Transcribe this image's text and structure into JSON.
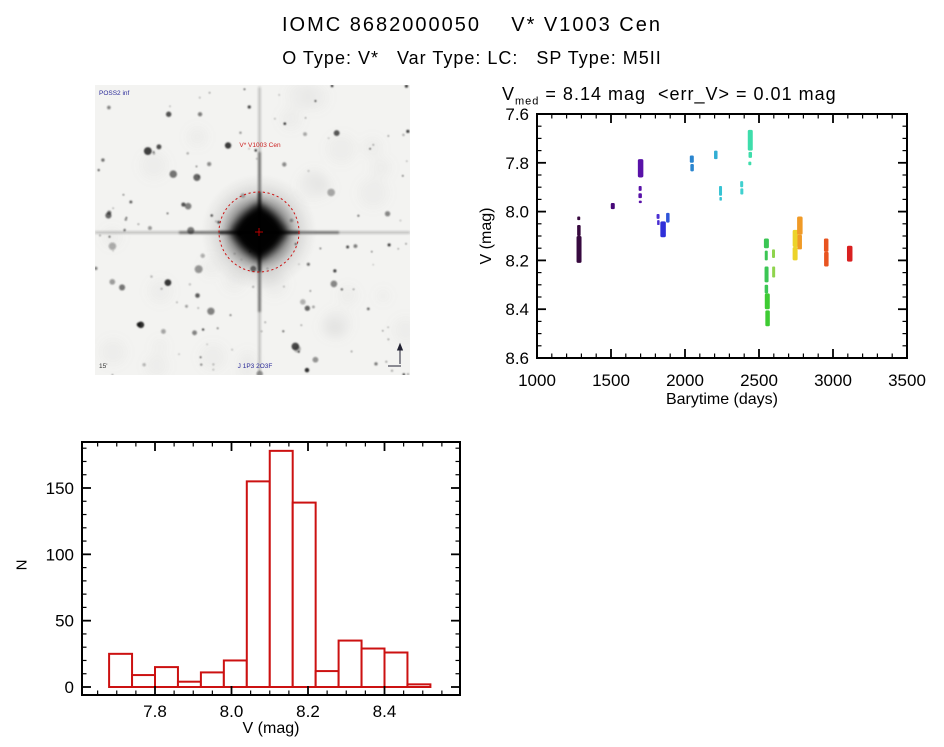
{
  "header": {
    "title": "IOMC 8682000050    V* V1003 Cen",
    "subtitle": "O Type: V*   Var Type: LC:   SP Type: M5II"
  },
  "finding_chart": {
    "survey_label": "POSS2 inf",
    "target_label": "V* V1003 Cen",
    "bottom_label": "J 1P3 2O3F",
    "fov_label": "15'",
    "circle_color": "#cc0000",
    "annotation_color": "#2a2a99"
  },
  "light_curve_title": {
    "v": "V",
    "sub": "med",
    "rest": " = 8.14 mag  <err_V> = 0.01 mag"
  },
  "chart_data": [
    {
      "id": "light_curve",
      "type": "scatter",
      "title": "V_med = 8.14 mag <err_V> = 0.01 mag",
      "xlabel": "Barytime (days)",
      "ylabel": "V (mag)",
      "xlim": [
        1000,
        3500
      ],
      "ylim": [
        7.6,
        8.6
      ],
      "y_inverted": true,
      "grid": false,
      "xticks": [
        1000,
        1500,
        2000,
        2500,
        3000,
        3500
      ],
      "yticks": [
        7.6,
        7.8,
        8.0,
        8.2,
        8.4,
        8.6
      ],
      "x_minor_step": 100,
      "y_minor_step": 0.05,
      "segments": [
        [
          1282,
          8.02,
          8.035,
          3,
          "#37093f"
        ],
        [
          1283,
          8.055,
          8.1,
          3.5,
          "#37093f"
        ],
        [
          1284,
          8.1,
          8.21,
          5,
          "#37093f"
        ],
        [
          1512,
          7.965,
          7.99,
          4,
          "#470879"
        ],
        [
          1700,
          7.785,
          7.86,
          5.5,
          "#5912a8"
        ],
        [
          1697,
          7.895,
          7.915,
          3,
          "#5912a8"
        ],
        [
          1697,
          7.925,
          7.945,
          3.5,
          "#5912a8"
        ],
        [
          1698,
          7.955,
          7.965,
          3,
          "#5912a8"
        ],
        [
          1818,
          8.01,
          8.03,
          3,
          "#4b2fd2"
        ],
        [
          1820,
          8.035,
          8.055,
          2.5,
          "#4b2fd2"
        ],
        [
          1852,
          8.04,
          8.105,
          5.5,
          "#2f2fd9"
        ],
        [
          1884,
          8.005,
          8.045,
          3.5,
          "#2f55d9"
        ],
        [
          2046,
          7.77,
          7.8,
          4,
          "#2a85cf"
        ],
        [
          2048,
          7.805,
          7.835,
          3.5,
          "#2a85cf"
        ],
        [
          2208,
          7.75,
          7.785,
          3.5,
          "#31aed4"
        ],
        [
          2240,
          7.895,
          7.935,
          3,
          "#36c3d4"
        ],
        [
          2241,
          7.94,
          7.955,
          2.5,
          "#36c3d4"
        ],
        [
          2383,
          7.875,
          7.9,
          3,
          "#3fd0cf"
        ],
        [
          2384,
          7.905,
          7.93,
          3,
          "#3fd0cf"
        ],
        [
          2441,
          7.665,
          7.75,
          5,
          "#3eddab"
        ],
        [
          2441,
          7.755,
          7.78,
          3.5,
          "#3eddab"
        ],
        [
          2438,
          7.795,
          7.81,
          3,
          "#3eddab"
        ],
        [
          2550,
          8.11,
          8.15,
          5,
          "#3bc654"
        ],
        [
          2549,
          8.16,
          8.2,
          3,
          "#3bc654"
        ],
        [
          2551,
          8.225,
          8.29,
          4,
          "#3bc654"
        ],
        [
          2550,
          8.3,
          8.335,
          3.5,
          "#3bc654"
        ],
        [
          2556,
          8.335,
          8.4,
          5,
          "#3ecb33"
        ],
        [
          2558,
          8.405,
          8.47,
          4.5,
          "#3ecb33"
        ],
        [
          2598,
          8.155,
          8.19,
          3,
          "#8fd44d"
        ],
        [
          2599,
          8.225,
          8.27,
          3,
          "#8fd44d"
        ],
        [
          2746,
          8.075,
          8.145,
          5.5,
          "#ecd32a"
        ],
        [
          2744,
          8.145,
          8.2,
          5,
          "#ecd32a"
        ],
        [
          2776,
          8.02,
          8.095,
          5.5,
          "#f09a26"
        ],
        [
          2775,
          8.095,
          8.155,
          4.5,
          "#f09a26"
        ],
        [
          2954,
          8.11,
          8.165,
          4.5,
          "#e85420"
        ],
        [
          2955,
          8.165,
          8.225,
          4.5,
          "#e85420"
        ],
        [
          3113,
          8.14,
          8.205,
          5.5,
          "#d92020"
        ]
      ]
    },
    {
      "id": "v_histogram",
      "type": "bar",
      "title": "",
      "xlabel": "V (mag)",
      "ylabel": "N",
      "xlim": [
        7.61,
        8.6
      ],
      "ylim": [
        -6,
        185
      ],
      "grid": false,
      "xticks": [
        7.8,
        8.0,
        8.2,
        8.4
      ],
      "yticks": [
        0,
        50,
        100,
        150
      ],
      "x_minor_step": 0.05,
      "y_minor_step": 10,
      "bar_color": "#cc1111",
      "bin_start": 7.68,
      "bin_width": 0.06,
      "values": [
        25,
        9,
        15,
        4,
        11,
        20,
        155,
        178,
        139,
        12,
        35,
        29,
        26,
        2
      ]
    }
  ]
}
